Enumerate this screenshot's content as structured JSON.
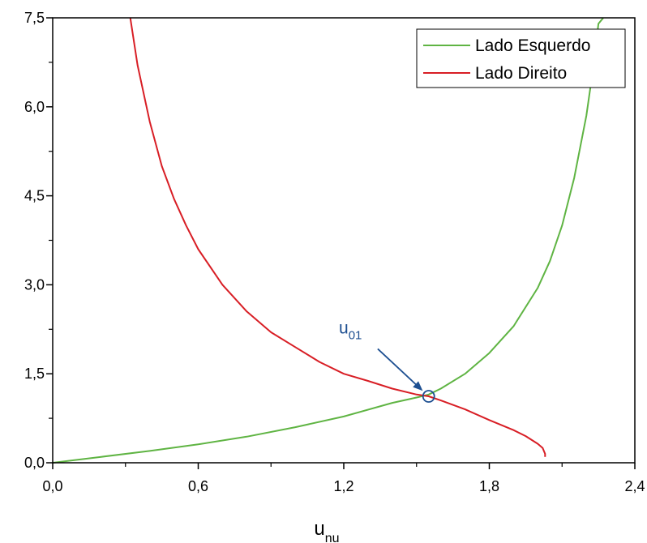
{
  "chart_data": {
    "type": "line",
    "xlabel": {
      "main": "u",
      "sub": "nu"
    },
    "ylabel": "",
    "xlim": [
      0.0,
      2.4
    ],
    "ylim": [
      0.0,
      7.5
    ],
    "x_ticks": [
      "0,0",
      "0,6",
      "1,2",
      "1,8",
      "2,4"
    ],
    "y_ticks": [
      "0,0",
      "1,5",
      "3,0",
      "4,5",
      "6,0",
      "7,5"
    ],
    "grid": false,
    "legend_position": "top-right",
    "colors": {
      "lado_esquerdo": "#5fb443",
      "lado_direito": "#d81e25",
      "annotation": "#1d4f91"
    },
    "series": [
      {
        "name": "Lado Esquerdo",
        "x": [
          0.0,
          0.2,
          0.4,
          0.6,
          0.8,
          1.0,
          1.2,
          1.4,
          1.5,
          1.55,
          1.6,
          1.7,
          1.8,
          1.9,
          2.0,
          2.05,
          2.1,
          2.15,
          2.2,
          2.23,
          2.25,
          2.27
        ],
        "y": [
          0.0,
          0.1,
          0.2,
          0.31,
          0.44,
          0.6,
          0.78,
          1.01,
          1.1,
          1.15,
          1.25,
          1.5,
          1.85,
          2.3,
          2.95,
          3.4,
          4.0,
          4.8,
          5.85,
          6.7,
          7.4,
          7.5
        ]
      },
      {
        "name": "Lado Direito",
        "x": [
          0.32,
          0.35,
          0.4,
          0.45,
          0.5,
          0.55,
          0.6,
          0.7,
          0.8,
          0.9,
          1.0,
          1.1,
          1.2,
          1.3,
          1.4,
          1.5,
          1.55,
          1.6,
          1.7,
          1.8,
          1.9,
          1.95,
          2.0,
          2.02,
          2.03,
          2.03
        ],
        "y": [
          7.5,
          6.7,
          5.75,
          5.0,
          4.45,
          4.0,
          3.6,
          3.0,
          2.55,
          2.2,
          1.95,
          1.7,
          1.5,
          1.38,
          1.25,
          1.15,
          1.12,
          1.05,
          0.9,
          0.72,
          0.55,
          0.45,
          0.32,
          0.25,
          0.15,
          0.1
        ]
      }
    ],
    "annotation": {
      "main": "u",
      "sub": "01",
      "point": {
        "x": 1.55,
        "y": 1.12
      },
      "label_anchor": {
        "x": 1.18,
        "y": 2.18
      },
      "arrow_start": {
        "x": 1.34,
        "y": 1.92
      }
    }
  }
}
